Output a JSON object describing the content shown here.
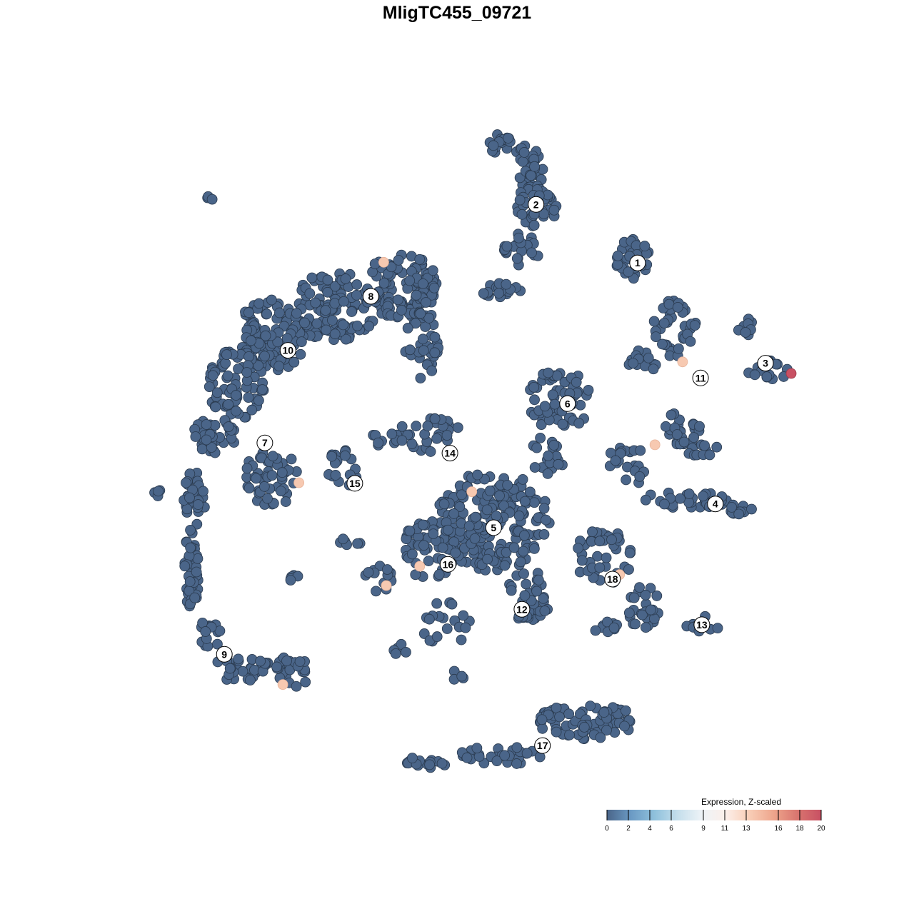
{
  "chart_data": {
    "type": "scatter",
    "title": "MligTC455_09721",
    "xlabel": "",
    "ylabel": "",
    "grid": false,
    "point_color_default": "#4a6589",
    "clusters": [
      {
        "label": "1",
        "x": 28.1,
        "y": 30.2
      },
      {
        "label": "2",
        "x": 12.3,
        "y": 39.3
      },
      {
        "label": "3",
        "x": 48.0,
        "y": 14.6
      },
      {
        "label": "4",
        "x": 40.2,
        "y": -7.3
      },
      {
        "label": "5",
        "x": 5.7,
        "y": -11.0
      },
      {
        "label": "6",
        "x": 17.2,
        "y": 8.3
      },
      {
        "label": "7",
        "x": -29.9,
        "y": 2.2
      },
      {
        "label": "8",
        "x": -13.4,
        "y": 25.0
      },
      {
        "label": "9",
        "x": -36.2,
        "y": -30.7
      },
      {
        "label": "10",
        "x": -26.3,
        "y": 16.6
      },
      {
        "label": "11",
        "x": 37.9,
        "y": 12.3
      },
      {
        "label": "12",
        "x": 10.1,
        "y": -23.7
      },
      {
        "label": "13",
        "x": 38.1,
        "y": -26.1
      },
      {
        "label": "14",
        "x": -1.1,
        "y": 0.6
      },
      {
        "label": "15",
        "x": -15.9,
        "y": -4.1
      },
      {
        "label": "16",
        "x": -1.4,
        "y": -16.7
      },
      {
        "label": "17",
        "x": 13.3,
        "y": -44.9
      },
      {
        "label": "18",
        "x": 24.2,
        "y": -19.0
      }
    ],
    "expressing_points": [
      {
        "x": -11.4,
        "y": 30.3,
        "value": 13
      },
      {
        "x": 35.1,
        "y": 14.8,
        "value": 13
      },
      {
        "x": 30.8,
        "y": 1.9,
        "value": 13
      },
      {
        "x": -24.6,
        "y": -4.0,
        "value": 13
      },
      {
        "x": 2.3,
        "y": -5.4,
        "value": 13
      },
      {
        "x": -5.8,
        "y": -17.0,
        "value": 13
      },
      {
        "x": -11.0,
        "y": -20.0,
        "value": 13
      },
      {
        "x": -27.1,
        "y": -35.4,
        "value": 13
      },
      {
        "x": 25.3,
        "y": -18.3,
        "value": 13
      },
      {
        "x": 52.0,
        "y": 13.0,
        "value": 20
      }
    ],
    "legend": {
      "title": "Expression, Z-scaled",
      "placement": "bottom-right",
      "range": [
        0,
        20
      ],
      "ticks": [
        "0",
        "2",
        "4",
        "6",
        "9",
        "11",
        "13",
        "16",
        "18",
        "20"
      ],
      "colors": [
        "#4a6589",
        "#6b9ac4",
        "#8fc1dc",
        "#c6dfec",
        "#eef3f7",
        "#fcefe9",
        "#f8cdb6",
        "#eea58c",
        "#d9756f",
        "#c85063"
      ]
    }
  }
}
